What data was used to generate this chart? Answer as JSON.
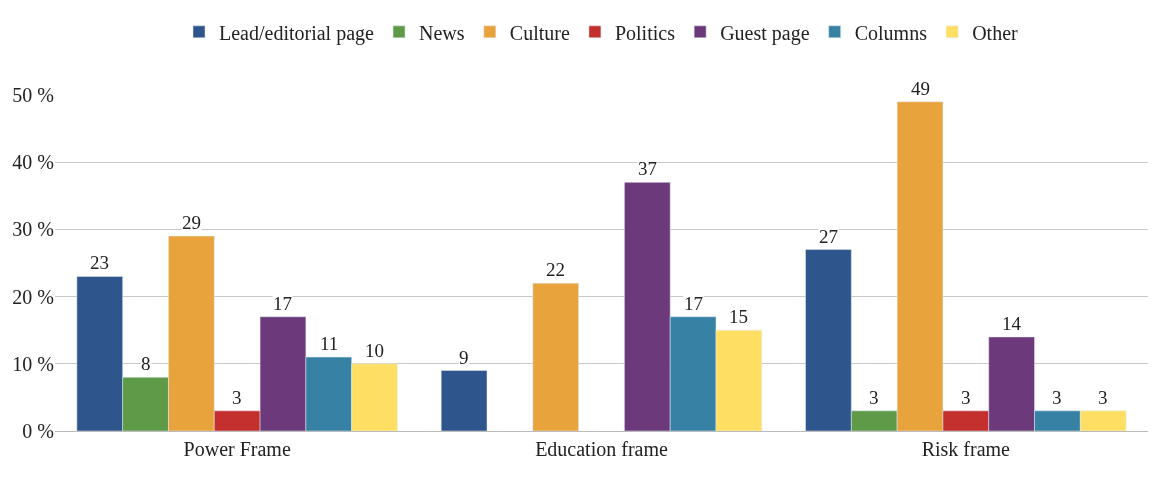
{
  "chart_data": {
    "type": "bar",
    "categories": [
      "Power Frame",
      "Education frame",
      "Risk frame"
    ],
    "series": [
      {
        "name": "Lead/editorial page",
        "color": "#2e568c",
        "values": [
          23,
          9,
          27
        ]
      },
      {
        "name": "News",
        "color": "#5e9a48",
        "values": [
          8,
          null,
          3
        ]
      },
      {
        "name": "Culture",
        "color": "#e8a33c",
        "values": [
          29,
          22,
          49
        ]
      },
      {
        "name": "Politics",
        "color": "#c4302d",
        "values": [
          3,
          null,
          3
        ]
      },
      {
        "name": "Guest page",
        "color": "#6c3a7b",
        "values": [
          17,
          37,
          14
        ]
      },
      {
        "name": "Columns",
        "color": "#3781a5",
        "values": [
          11,
          17,
          3
        ]
      },
      {
        "name": "Other",
        "color": "#fedf63",
        "values": [
          10,
          15,
          3
        ]
      }
    ],
    "ylim": [
      0,
      50
    ],
    "yticks": [
      {
        "value": 0,
        "label": "0 %"
      },
      {
        "value": 10,
        "label": "10 %"
      },
      {
        "value": 20,
        "label": "20 %"
      },
      {
        "value": 30,
        "label": "30 %"
      },
      {
        "value": 40,
        "label": "40 %"
      },
      {
        "value": 50,
        "label": "50 %"
      }
    ],
    "grid": "y",
    "legend": "top",
    "data_labels": true
  }
}
